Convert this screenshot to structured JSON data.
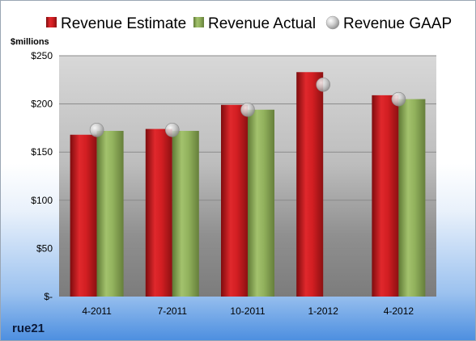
{
  "chart_data": {
    "type": "bar",
    "unit_label": "$millions",
    "categories": [
      "4-2011",
      "7-2011",
      "10-2011",
      "1-2012",
      "4-2012"
    ],
    "series": [
      {
        "name": "Revenue Estimate",
        "kind": "bar",
        "color": "#c8161b",
        "values": [
          168,
          174,
          199,
          233,
          209
        ]
      },
      {
        "name": "Revenue Actual",
        "kind": "bar",
        "color": "#8aaa55",
        "values": [
          172,
          172,
          194,
          null,
          205
        ]
      },
      {
        "name": "Revenue GAAP",
        "kind": "marker",
        "color": "#b9b9b9",
        "values": [
          173,
          173,
          194,
          220,
          205
        ]
      }
    ],
    "ylim": [
      0,
      250
    ],
    "yticks": [
      0,
      50,
      100,
      150,
      200,
      250
    ],
    "ytick_labels": [
      "$-",
      "$50",
      "$100",
      "$150",
      "$200",
      "$250"
    ],
    "grid": true,
    "legend_position": "top"
  },
  "footer": {
    "company": "rue21"
  }
}
